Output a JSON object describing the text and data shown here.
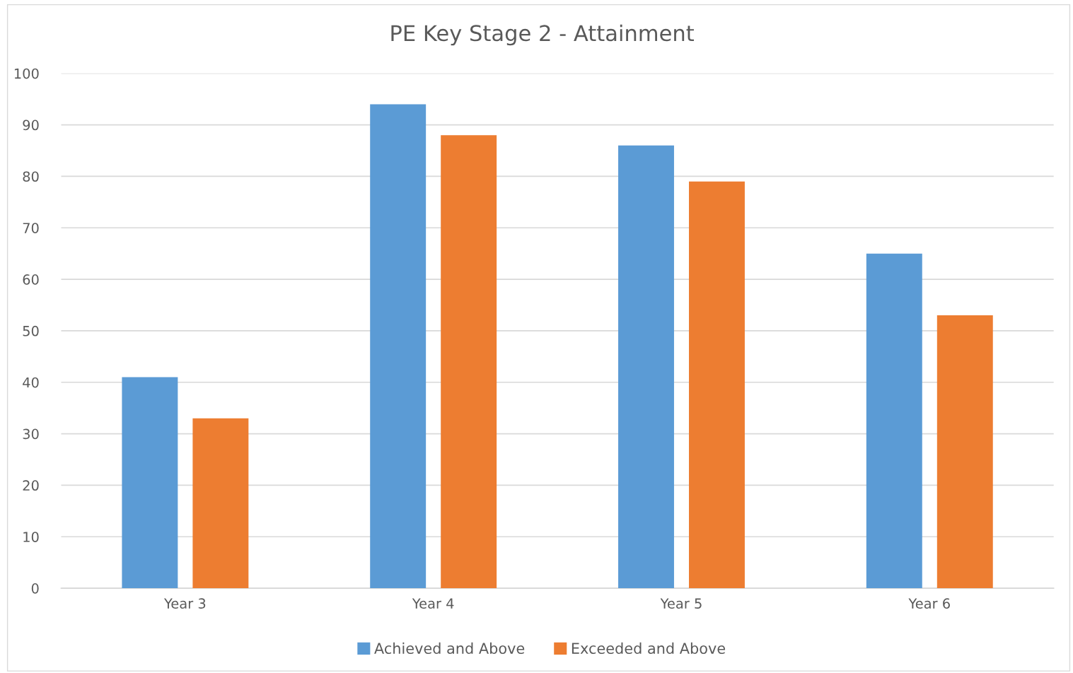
{
  "chart_data": {
    "type": "bar",
    "title": "PE Key Stage 2 - Attainment",
    "categories": [
      "Year 3",
      "Year 4",
      "Year 5",
      "Year 6"
    ],
    "series": [
      {
        "name": "Achieved and Above",
        "color": "#5b9bd5",
        "values": [
          41,
          94,
          86,
          65
        ]
      },
      {
        "name": "Exceeded and Above",
        "color": "#ed7d31",
        "values": [
          33,
          88,
          79,
          53
        ]
      }
    ],
    "ylim": [
      0,
      100
    ],
    "yticks": [
      0,
      10,
      20,
      30,
      40,
      50,
      60,
      70,
      80,
      90,
      100
    ],
    "grid": "y",
    "legend": "bottom"
  }
}
